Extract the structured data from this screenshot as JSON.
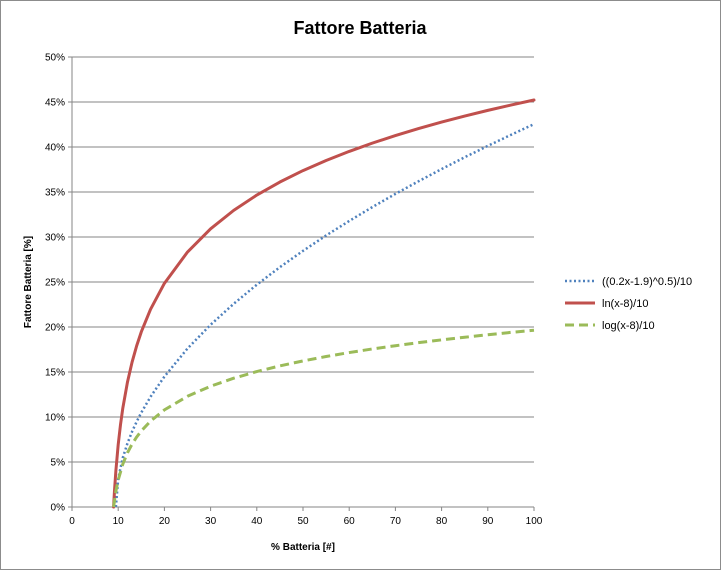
{
  "chart_data": {
    "type": "line",
    "title": "Fattore Batteria",
    "xlabel": "% Batteria [#]",
    "ylabel": "Fattore Batteria [%]",
    "xlim": [
      0,
      100
    ],
    "ylim": [
      0,
      0.5
    ],
    "x_ticks": [
      "0",
      "10",
      "20",
      "30",
      "40",
      "50",
      "60",
      "70",
      "80",
      "90",
      "100"
    ],
    "y_ticks": [
      "0%",
      "5%",
      "10%",
      "15%",
      "20%",
      "25%",
      "30%",
      "35%",
      "40%",
      "45%",
      "50%"
    ],
    "grid": "horizontal",
    "legend_position": "right",
    "series": [
      {
        "name": "((0.2x-1.9)^0.5)/10",
        "color": "#4f81bd",
        "style": "dotted",
        "x": [
          9.5,
          10,
          11,
          12,
          13,
          14,
          15,
          17,
          20,
          25,
          30,
          35,
          40,
          45,
          50,
          55,
          60,
          65,
          70,
          75,
          80,
          85,
          90,
          95,
          100
        ],
        "y": [
          0.0,
          0.0316,
          0.0548,
          0.0707,
          0.0837,
          0.0949,
          0.1049,
          0.1225,
          0.1449,
          0.1761,
          0.2025,
          0.2258,
          0.247,
          0.2665,
          0.2846,
          0.3017,
          0.3178,
          0.3332,
          0.3479,
          0.3619,
          0.3755,
          0.3886,
          0.4012,
          0.4135,
          0.4254
        ]
      },
      {
        "name": "ln(x-8)/10",
        "color": "#c0504d",
        "style": "solid",
        "x": [
          9,
          9.2,
          9.5,
          10,
          10.5,
          11,
          12,
          13,
          14,
          15,
          17,
          20,
          25,
          30,
          35,
          40,
          45,
          50,
          55,
          60,
          65,
          70,
          75,
          80,
          85,
          90,
          95,
          100
        ],
        "y": [
          0.0,
          0.0182,
          0.0405,
          0.0693,
          0.0916,
          0.1099,
          0.1386,
          0.1609,
          0.1792,
          0.1946,
          0.2197,
          0.2485,
          0.2833,
          0.3091,
          0.3296,
          0.3466,
          0.3611,
          0.3738,
          0.385,
          0.3951,
          0.4043,
          0.4127,
          0.4205,
          0.4277,
          0.4344,
          0.4407,
          0.4466,
          0.4522
        ]
      },
      {
        "name": "log(x-8)/10",
        "color": "#9bbb59",
        "style": "dashed",
        "x": [
          9,
          9.5,
          10,
          11,
          12,
          13,
          14,
          15,
          17,
          20,
          25,
          30,
          35,
          40,
          45,
          50,
          55,
          60,
          65,
          70,
          75,
          80,
          85,
          90,
          95,
          100
        ],
        "y": [
          0.0,
          0.0176,
          0.0301,
          0.0477,
          0.0602,
          0.0699,
          0.0778,
          0.0845,
          0.0954,
          0.1079,
          0.123,
          0.1342,
          0.1431,
          0.1505,
          0.1568,
          0.1623,
          0.1672,
          0.1716,
          0.1756,
          0.1792,
          0.1826,
          0.1857,
          0.1886,
          0.1914,
          0.194,
          0.1964
        ]
      }
    ]
  }
}
